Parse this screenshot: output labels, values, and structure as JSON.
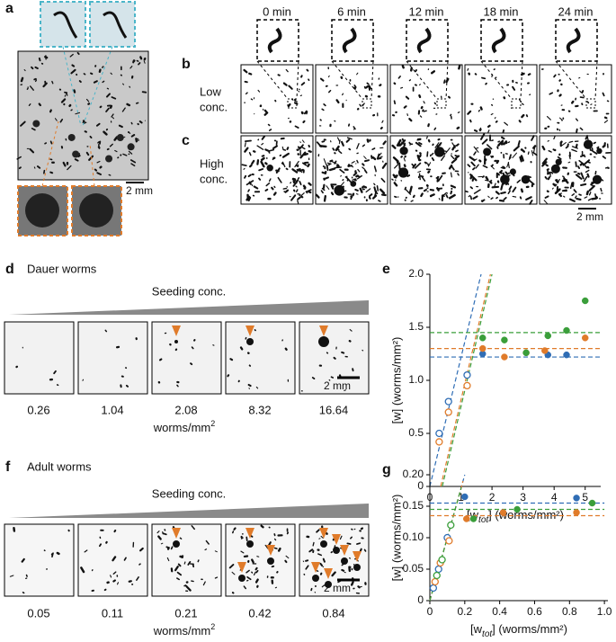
{
  "panels": {
    "a": {
      "label": "a",
      "scale": "2 mm"
    },
    "b": {
      "label": "b",
      "row_label": [
        "Low",
        "conc."
      ],
      "times": [
        "0 min",
        "6 min",
        "12 min",
        "18 min",
        "24 min"
      ]
    },
    "c": {
      "label": "c",
      "row_label": [
        "High",
        "conc."
      ],
      "scale": "2 mm"
    },
    "d": {
      "label": "d",
      "title": "Dauer worms",
      "wedge_label": "Seeding conc.",
      "concentrations": [
        0.26,
        1.04,
        2.08,
        8.32,
        16.64
      ],
      "unit": {
        "text": "worms/mm",
        "sup": "2"
      },
      "scale": "2 mm"
    },
    "f": {
      "label": "f",
      "title": "Adult worms",
      "wedge_label": "Seeding conc.",
      "concentrations": [
        0.05,
        0.11,
        0.21,
        0.42,
        0.84
      ],
      "unit": {
        "text": "worms/mm",
        "sup": "2"
      },
      "scale": "2 mm"
    }
  },
  "chart_data": [
    {
      "type": "scatter",
      "panel_label": "e",
      "ylabel": "[w] (worms/mm²)",
      "xlabel": {
        "main": "[w",
        "sub": "tot",
        "rest": "] (worms/mm²)"
      },
      "xlim": [
        0,
        5.5
      ],
      "ylim": [
        0,
        2.0
      ],
      "xticks": [
        0,
        1,
        2,
        3,
        4,
        5
      ],
      "yticks": [
        0,
        0.5,
        {
          "value": 1,
          "label": "1.0"
        },
        1.5,
        {
          "value": 2,
          "label": "2.0"
        }
      ],
      "series": [
        {
          "color": "#2f6db5",
          "x": [
            0.3,
            0.6,
            1.2,
            1.7,
            3.8,
            4.4
          ],
          "y": [
            0.5,
            0.8,
            1.05,
            1.25,
            1.24,
            1.24
          ],
          "open": [
            true,
            true,
            true,
            false,
            false,
            false
          ]
        },
        {
          "color": "#e07b2a",
          "x": [
            0.3,
            0.6,
            1.2,
            1.7,
            2.4,
            3.1,
            3.7,
            5.0
          ],
          "y": [
            0.42,
            0.7,
            0.95,
            1.3,
            1.22,
            1.26,
            1.28,
            1.4
          ],
          "open": [
            true,
            true,
            true,
            false,
            false,
            false,
            false,
            false
          ]
        },
        {
          "color": "#3a9e3a",
          "x": [
            1.7,
            2.4,
            3.1,
            3.8,
            4.4,
            5.0
          ],
          "y": [
            1.4,
            1.38,
            1.26,
            1.42,
            1.47,
            1.75
          ],
          "open": [
            false,
            false,
            false,
            false,
            false,
            false
          ]
        }
      ],
      "lines": [
        {
          "color": "#2f6db5",
          "x": [
            0,
            1.65
          ],
          "y": [
            0,
            2.0
          ]
        },
        {
          "color": "#e07b2a",
          "x": [
            0.35,
            1.95
          ],
          "y": [
            0,
            2.0
          ]
        },
        {
          "color": "#3a9e3a",
          "x": [
            0.4,
            2.0
          ],
          "y": [
            0,
            2.0
          ]
        },
        {
          "color": "#2f6db5",
          "x": [
            0,
            5.5
          ],
          "y": [
            1.22,
            1.22
          ]
        },
        {
          "color": "#e07b2a",
          "x": [
            0,
            5.5
          ],
          "y": [
            1.3,
            1.3
          ]
        },
        {
          "color": "#3a9e3a",
          "x": [
            0,
            5.5
          ],
          "y": [
            1.45,
            1.45
          ]
        }
      ]
    },
    {
      "type": "scatter",
      "panel_label": "g",
      "ylabel": "[w] (worms/mm²)",
      "xlabel": {
        "main": "[w",
        "sub": "tot",
        "rest": "] (worms/mm²)"
      },
      "xlim": [
        0,
        1.02
      ],
      "ylim": [
        0,
        0.2
      ],
      "xticks": [
        0,
        0.2,
        0.4,
        0.6,
        0.8,
        {
          "value": 1,
          "label": "1.0"
        }
      ],
      "yticks": [
        0,
        0.05,
        {
          "value": 0.1,
          "label": "0.10"
        },
        0.15,
        {
          "value": 0.2,
          "label": "0.20"
        }
      ],
      "series": [
        {
          "color": "#2f6db5",
          "x": [
            0.02,
            0.05,
            0.1,
            0.2,
            0.42,
            0.84
          ],
          "y": [
            0.02,
            0.05,
            0.1,
            0.165,
            0.14,
            0.163
          ],
          "open": [
            true,
            true,
            true,
            false,
            false,
            false
          ]
        },
        {
          "color": "#e07b2a",
          "x": [
            0.03,
            0.06,
            0.11,
            0.21,
            0.42,
            0.84
          ],
          "y": [
            0.03,
            0.06,
            0.095,
            0.13,
            0.14,
            0.14
          ],
          "open": [
            true,
            true,
            true,
            false,
            false,
            false
          ]
        },
        {
          "color": "#3a9e3a",
          "x": [
            0.04,
            0.07,
            0.12,
            0.25,
            0.5,
            0.93
          ],
          "y": [
            0.04,
            0.065,
            0.12,
            0.13,
            0.145,
            0.155
          ],
          "open": [
            true,
            true,
            true,
            false,
            false,
            false
          ]
        }
      ],
      "lines": [
        {
          "color": "#2f6db5",
          "x": [
            0,
            0.2
          ],
          "y": [
            0,
            0.2
          ]
        },
        {
          "color": "#e07b2a",
          "x": [
            0,
            0.19
          ],
          "y": [
            0,
            0.19
          ]
        },
        {
          "color": "#3a9e3a",
          "x": [
            0,
            0.18
          ],
          "y": [
            0,
            0.18
          ]
        },
        {
          "color": "#2f6db5",
          "x": [
            0,
            1.0
          ],
          "y": [
            0.155,
            0.155
          ]
        },
        {
          "color": "#e07b2a",
          "x": [
            0,
            1.0
          ],
          "y": [
            0.135,
            0.135
          ]
        },
        {
          "color": "#3a9e3a",
          "x": [
            0,
            1.0
          ],
          "y": [
            0.145,
            0.145
          ]
        }
      ]
    }
  ]
}
